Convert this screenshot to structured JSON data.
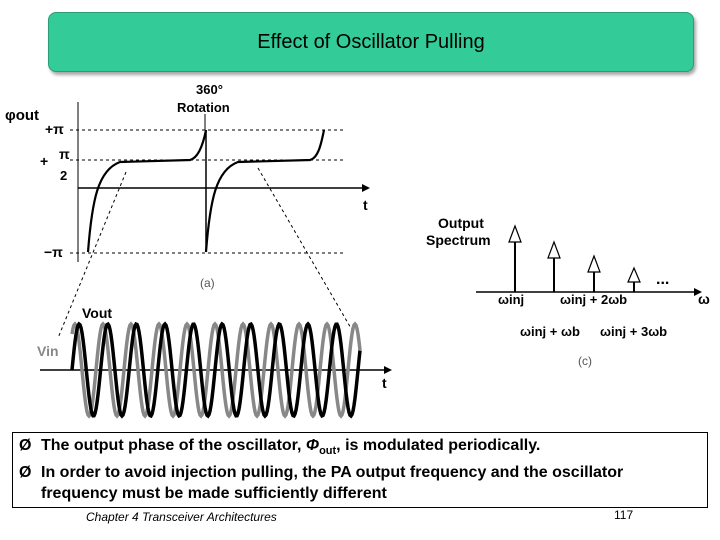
{
  "slide": {
    "title": "Effect of Oscillator Pulling",
    "footer": "Chapter 4 Transceiver Architectures",
    "page_number": "117"
  },
  "figure": {
    "phase_plot": {
      "y_label": "φout",
      "annotation_line1": "360°",
      "annotation_line2": "Rotation",
      "tick_plus_pi": "+π",
      "tick_plus_half_pi_num": "π",
      "tick_plus_half_pi_den": "2",
      "tick_minus_pi": "−π",
      "x_label": "t",
      "caption": "(a)"
    },
    "waveform_plot": {
      "vout_label": "Vout",
      "vin_label": "Vin",
      "x_label": "t"
    },
    "spectrum_plot": {
      "title_line1": "Output",
      "title_line2": "Spectrum",
      "label_inj": "ωinj",
      "label_inj_plus_wb": "ωinj + ωb",
      "label_inj_plus_2wb": "ωinj + 2ωb",
      "label_inj_plus_3wb": "ωinj + 3ωb",
      "axis_label": "ω",
      "ellipsis": "...",
      "caption": "(c)"
    }
  },
  "bullets": {
    "b1_pre": "The output phase of the oscillator, ",
    "b1_sym": "Φ",
    "b1_sub": "out",
    "b1_post": ", is modulated periodically.",
    "b2": "In order to avoid injection pulling, the PA output frequency and the oscillator frequency must be made sufficiently different",
    "marker": "Ø"
  }
}
